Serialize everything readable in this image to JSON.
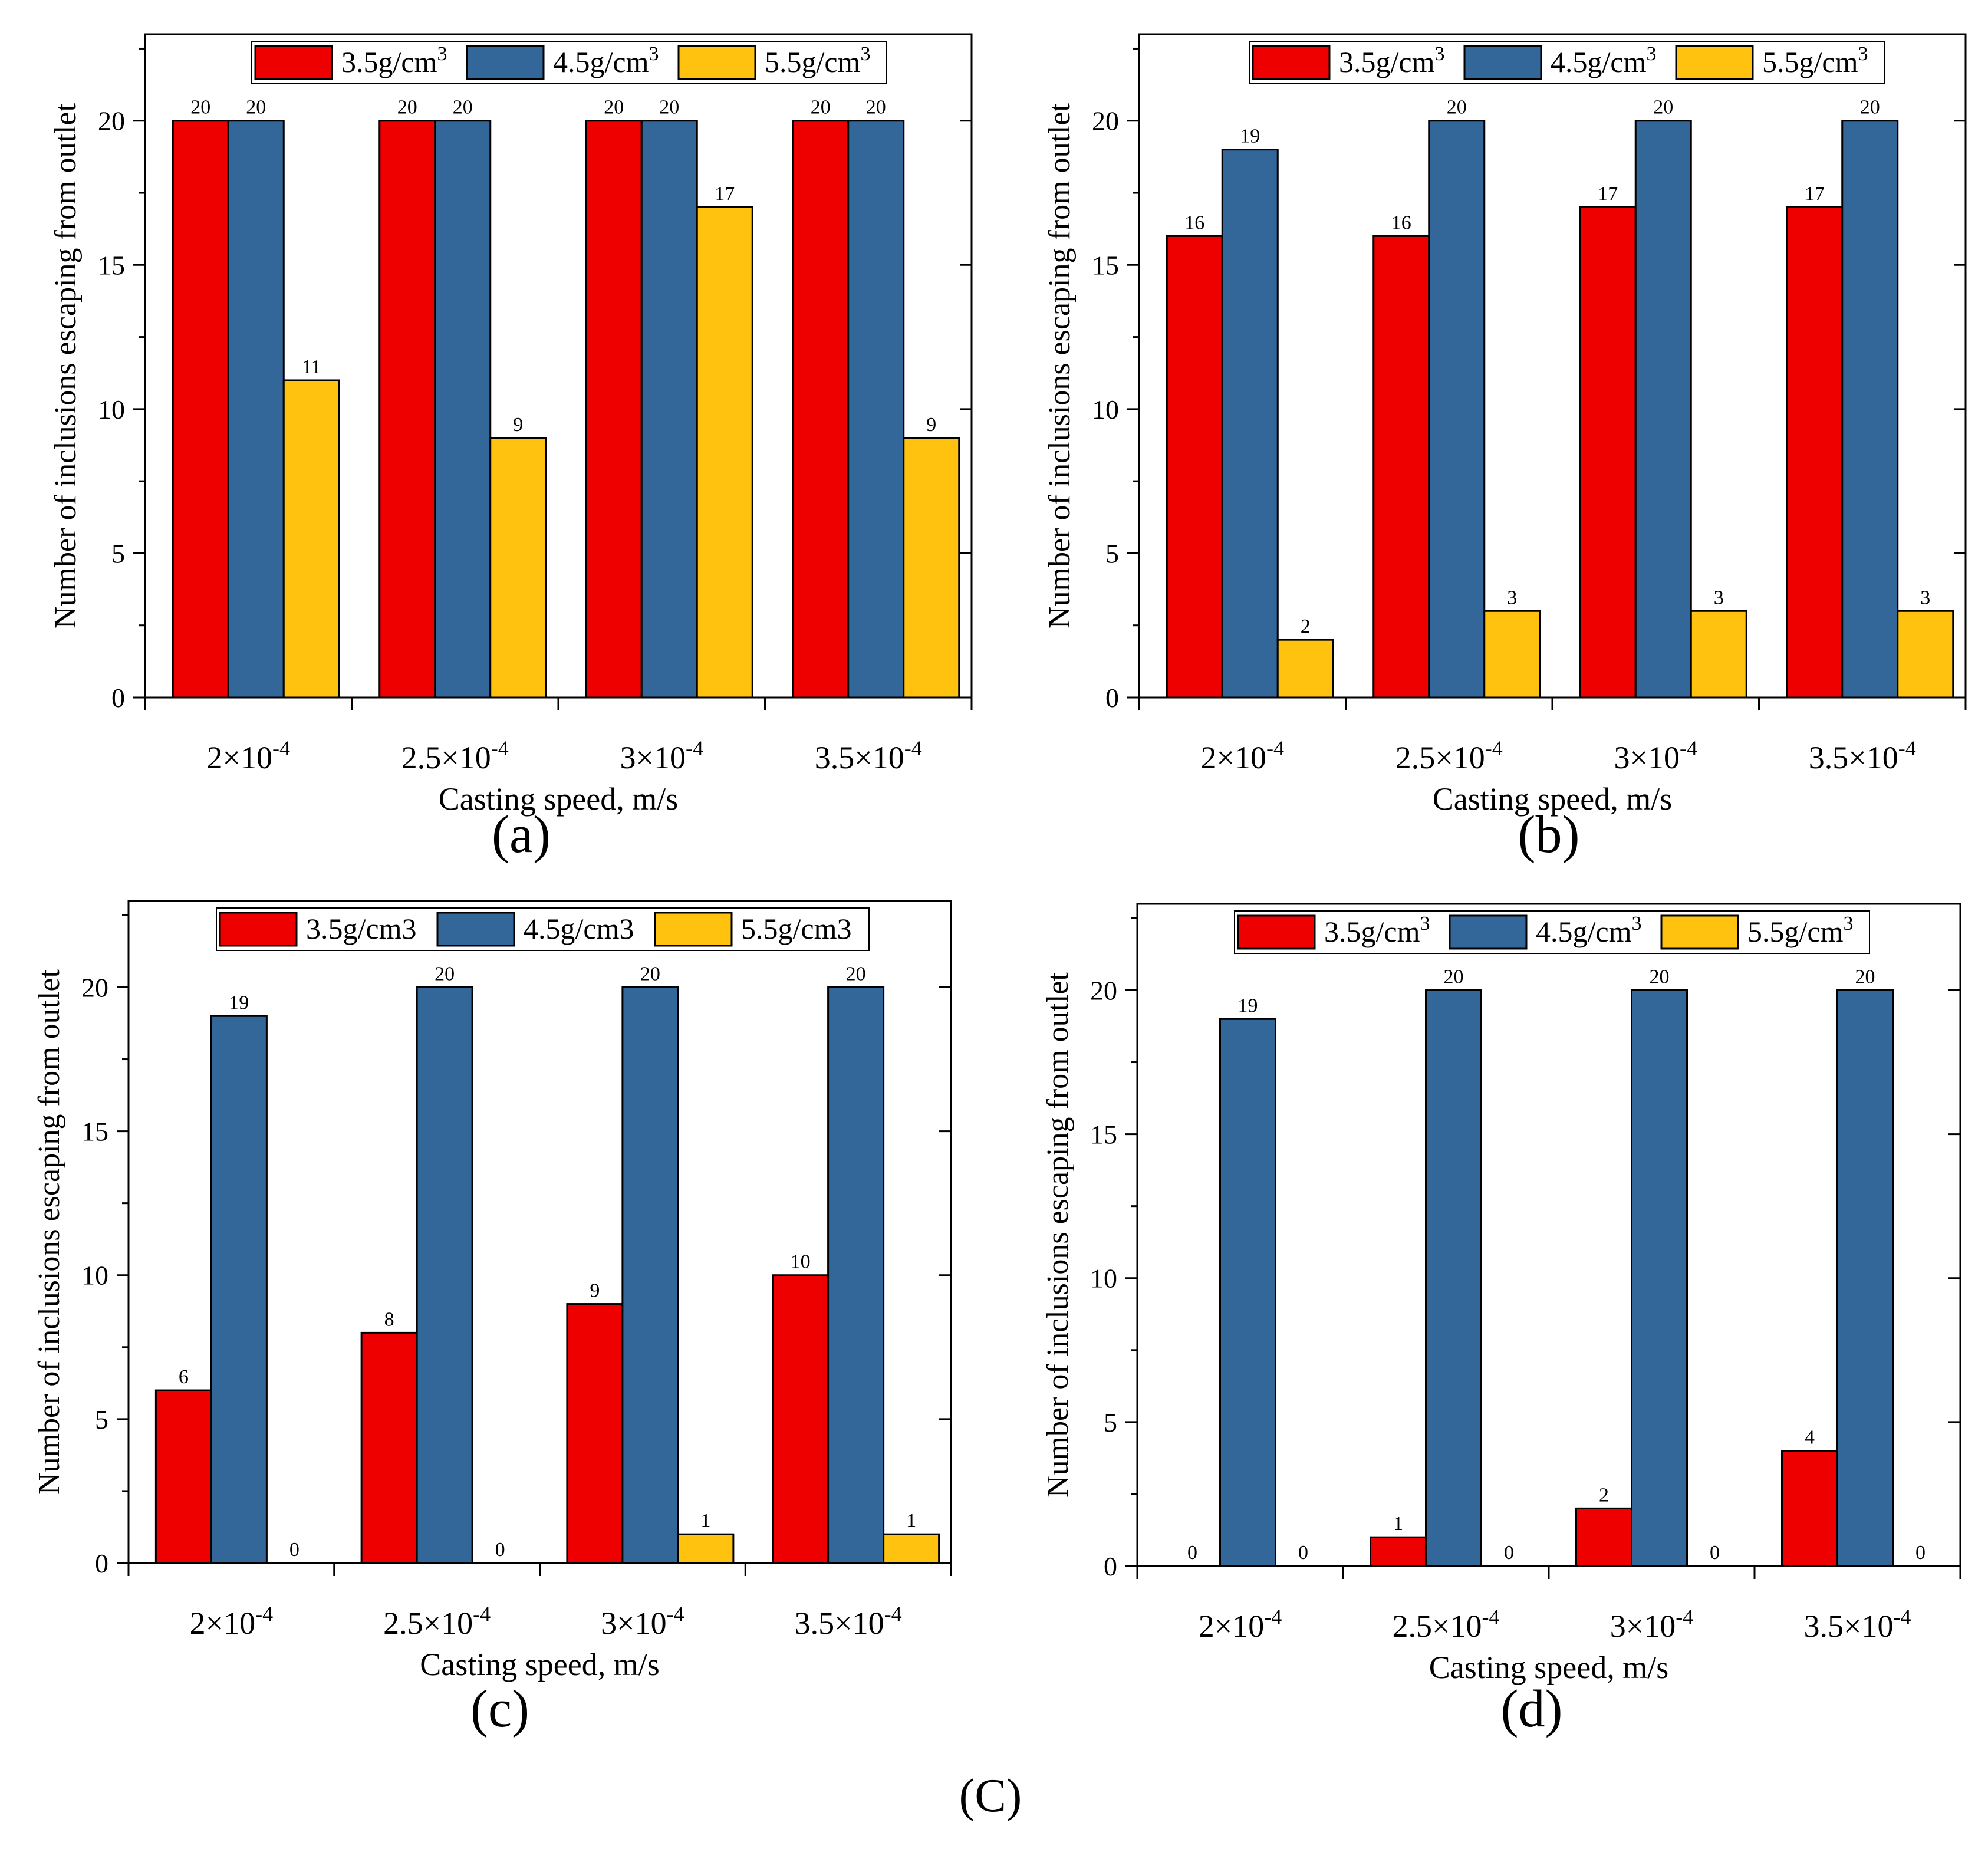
{
  "figure": {
    "caption": "(C)"
  },
  "colors": {
    "series_1": "#ee0000",
    "series_2": "#336699",
    "series_3": "#ffc20e"
  },
  "chart_data": [
    {
      "type": "bar",
      "panel_label": "(a)",
      "xlabel": "Casting speed, m/s",
      "ylabel": "Number of inclusions escaping from outlet",
      "ylim": [
        0,
        23
      ],
      "yticks": [
        0,
        5,
        10,
        15,
        20
      ],
      "categories": [
        {
          "mant": "2×10",
          "exp": "-4"
        },
        {
          "mant": "2.5×10",
          "exp": "-4"
        },
        {
          "mant": "3×10",
          "exp": "-4"
        },
        {
          "mant": "3.5×10",
          "exp": "-4"
        }
      ],
      "legend": [
        {
          "base": "3.5g/cm",
          "sup": "3"
        },
        {
          "base": "4.5g/cm",
          "sup": "3"
        },
        {
          "base": "5.5g/cm",
          "sup": "3"
        }
      ],
      "series": [
        {
          "name": "3.5g/cm3",
          "values": [
            20,
            20,
            20,
            20
          ]
        },
        {
          "name": "4.5g/cm3",
          "values": [
            20,
            20,
            20,
            20
          ]
        },
        {
          "name": "5.5g/cm3",
          "values": [
            11,
            9,
            17,
            9
          ]
        }
      ]
    },
    {
      "type": "bar",
      "panel_label": "(b)",
      "xlabel": "Casting speed, m/s",
      "ylabel": "Number of inclusions escaping from outlet",
      "ylim": [
        0,
        23
      ],
      "yticks": [
        0,
        5,
        10,
        15,
        20
      ],
      "categories": [
        {
          "mant": "2×10",
          "exp": "-4"
        },
        {
          "mant": "2.5×10",
          "exp": "-4"
        },
        {
          "mant": "3×10",
          "exp": "-4"
        },
        {
          "mant": "3.5×10",
          "exp": "-4"
        }
      ],
      "legend": [
        {
          "base": "3.5g/cm",
          "sup": "3"
        },
        {
          "base": "4.5g/cm",
          "sup": "3"
        },
        {
          "base": "5.5g/cm",
          "sup": "3"
        }
      ],
      "series": [
        {
          "name": "3.5g/cm3",
          "values": [
            16,
            16,
            17,
            17
          ]
        },
        {
          "name": "4.5g/cm3",
          "values": [
            19,
            20,
            20,
            20
          ]
        },
        {
          "name": "5.5g/cm3",
          "values": [
            2,
            3,
            3,
            3
          ]
        }
      ]
    },
    {
      "type": "bar",
      "panel_label": "(c)",
      "xlabel": "Casting speed, m/s",
      "ylabel": "Number of inclusions escaping from outlet",
      "ylim": [
        0,
        23
      ],
      "yticks": [
        0,
        5,
        10,
        15,
        20
      ],
      "categories": [
        {
          "mant": "2×10",
          "exp": "-4"
        },
        {
          "mant": "2.5×10",
          "exp": "-4"
        },
        {
          "mant": "3×10",
          "exp": "-4"
        },
        {
          "mant": "3.5×10",
          "exp": "-4"
        }
      ],
      "legend": [
        {
          "base": "3.5g/cm3",
          "sup": ""
        },
        {
          "base": "4.5g/cm3",
          "sup": ""
        },
        {
          "base": "5.5g/cm3",
          "sup": ""
        }
      ],
      "series": [
        {
          "name": "3.5g/cm3",
          "values": [
            6,
            8,
            9,
            10
          ]
        },
        {
          "name": "4.5g/cm3",
          "values": [
            19,
            20,
            20,
            20
          ]
        },
        {
          "name": "5.5g/cm3",
          "values": [
            0,
            0,
            1,
            1
          ]
        }
      ]
    },
    {
      "type": "bar",
      "panel_label": "(d)",
      "xlabel": "Casting speed, m/s",
      "ylabel": "Number of inclusions escaping from outlet",
      "ylim": [
        0,
        23
      ],
      "yticks": [
        0,
        5,
        10,
        15,
        20
      ],
      "categories": [
        {
          "mant": "2×10",
          "exp": "-4"
        },
        {
          "mant": "2.5×10",
          "exp": "-4"
        },
        {
          "mant": "3×10",
          "exp": "-4"
        },
        {
          "mant": "3.5×10",
          "exp": "-4"
        }
      ],
      "legend": [
        {
          "base": "3.5g/cm",
          "sup": "3"
        },
        {
          "base": "4.5g/cm",
          "sup": "3"
        },
        {
          "base": "5.5g/cm",
          "sup": "3"
        }
      ],
      "series": [
        {
          "name": "3.5g/cm3",
          "values": [
            0,
            1,
            2,
            4
          ]
        },
        {
          "name": "4.5g/cm3",
          "values": [
            19,
            20,
            20,
            20
          ]
        },
        {
          "name": "5.5g/cm3",
          "values": [
            0,
            0,
            0,
            0
          ]
        }
      ]
    }
  ]
}
